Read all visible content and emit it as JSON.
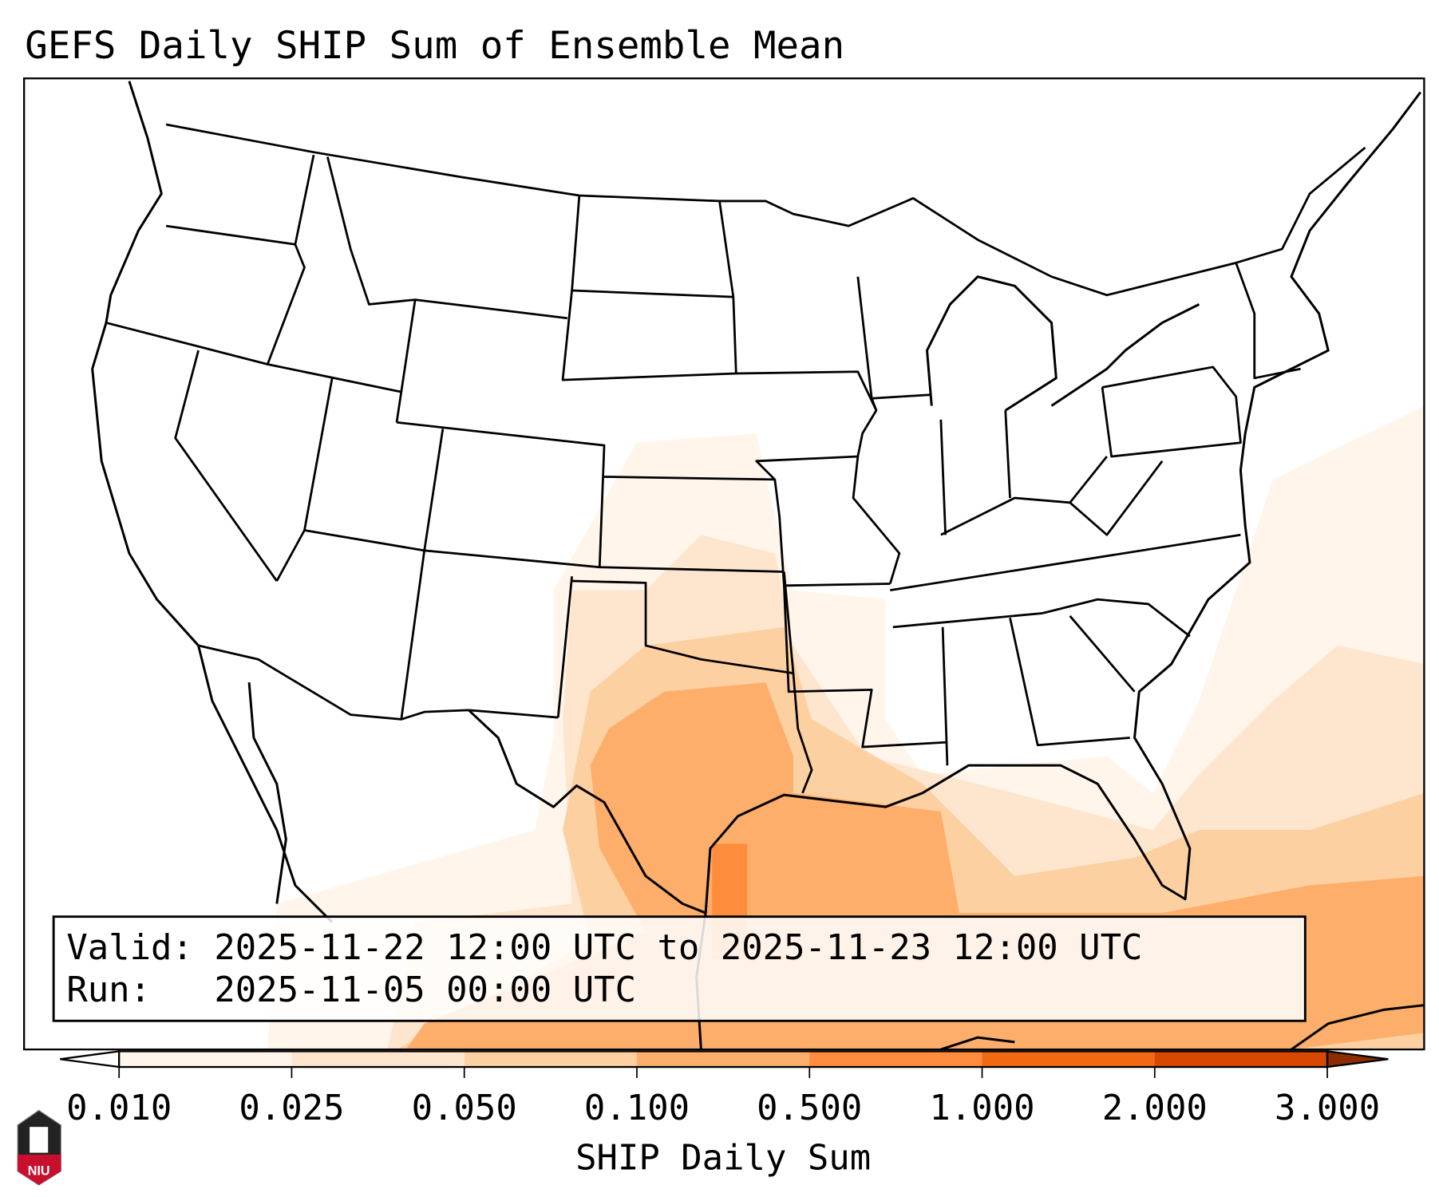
{
  "title": "GEFS Daily SHIP Sum of Ensemble Mean",
  "info_box": {
    "valid_line": "Valid: 2025-11-22 12:00 UTC to 2025-11-23 12:00 UTC",
    "run_line": "Run:   2025-11-05 00:00 UTC"
  },
  "colorbar": {
    "label": "SHIP Daily Sum",
    "ticks": [
      "0.010",
      "0.025",
      "0.050",
      "0.100",
      "0.500",
      "1.000",
      "2.000",
      "3.000"
    ],
    "colors": [
      "#fff5eb",
      "#fee6ce",
      "#fdd0a2",
      "#fdae6b",
      "#fd8d3c",
      "#f16913",
      "#d94801",
      "#8c2d04"
    ],
    "extend_low_color": "#ffffff"
  },
  "logo": {
    "text": "NIU"
  }
}
